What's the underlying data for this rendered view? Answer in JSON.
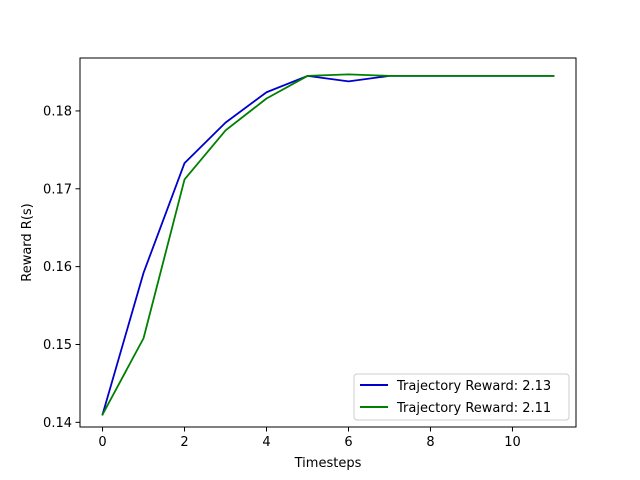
{
  "chart_data": {
    "type": "line",
    "title": "",
    "xlabel": "Timesteps",
    "ylabel": "Reward R(s)",
    "xlim": [
      -0.55,
      11.55
    ],
    "ylim": [
      0.1394,
      0.1868
    ],
    "xticks": [
      0,
      2,
      4,
      6,
      8,
      10
    ],
    "yticks": [
      0.14,
      0.15,
      0.16,
      0.17,
      0.18
    ],
    "xtick_labels": [
      "0",
      "2",
      "4",
      "6",
      "8",
      "10"
    ],
    "ytick_labels": [
      "0.14",
      "0.15",
      "0.16",
      "0.17",
      "0.18"
    ],
    "grid": false,
    "legend_position": "bottom-right",
    "x": [
      0,
      1,
      2,
      3,
      4,
      5,
      6,
      7,
      8,
      9,
      10,
      11
    ],
    "series": [
      {
        "name": "Trajectory Reward: 2.13",
        "color": "#0000cc",
        "values": [
          0.141,
          0.1592,
          0.1733,
          0.1785,
          0.1824,
          0.1845,
          0.1838,
          0.1845,
          0.1845,
          0.1845,
          0.1845,
          0.1845
        ]
      },
      {
        "name": "Trajectory Reward: 2.11",
        "color": "#008000",
        "values": [
          0.141,
          0.1508,
          0.1712,
          0.1775,
          0.1816,
          0.1845,
          0.1847,
          0.1845,
          0.1845,
          0.1845,
          0.1845,
          0.1845
        ]
      }
    ]
  }
}
